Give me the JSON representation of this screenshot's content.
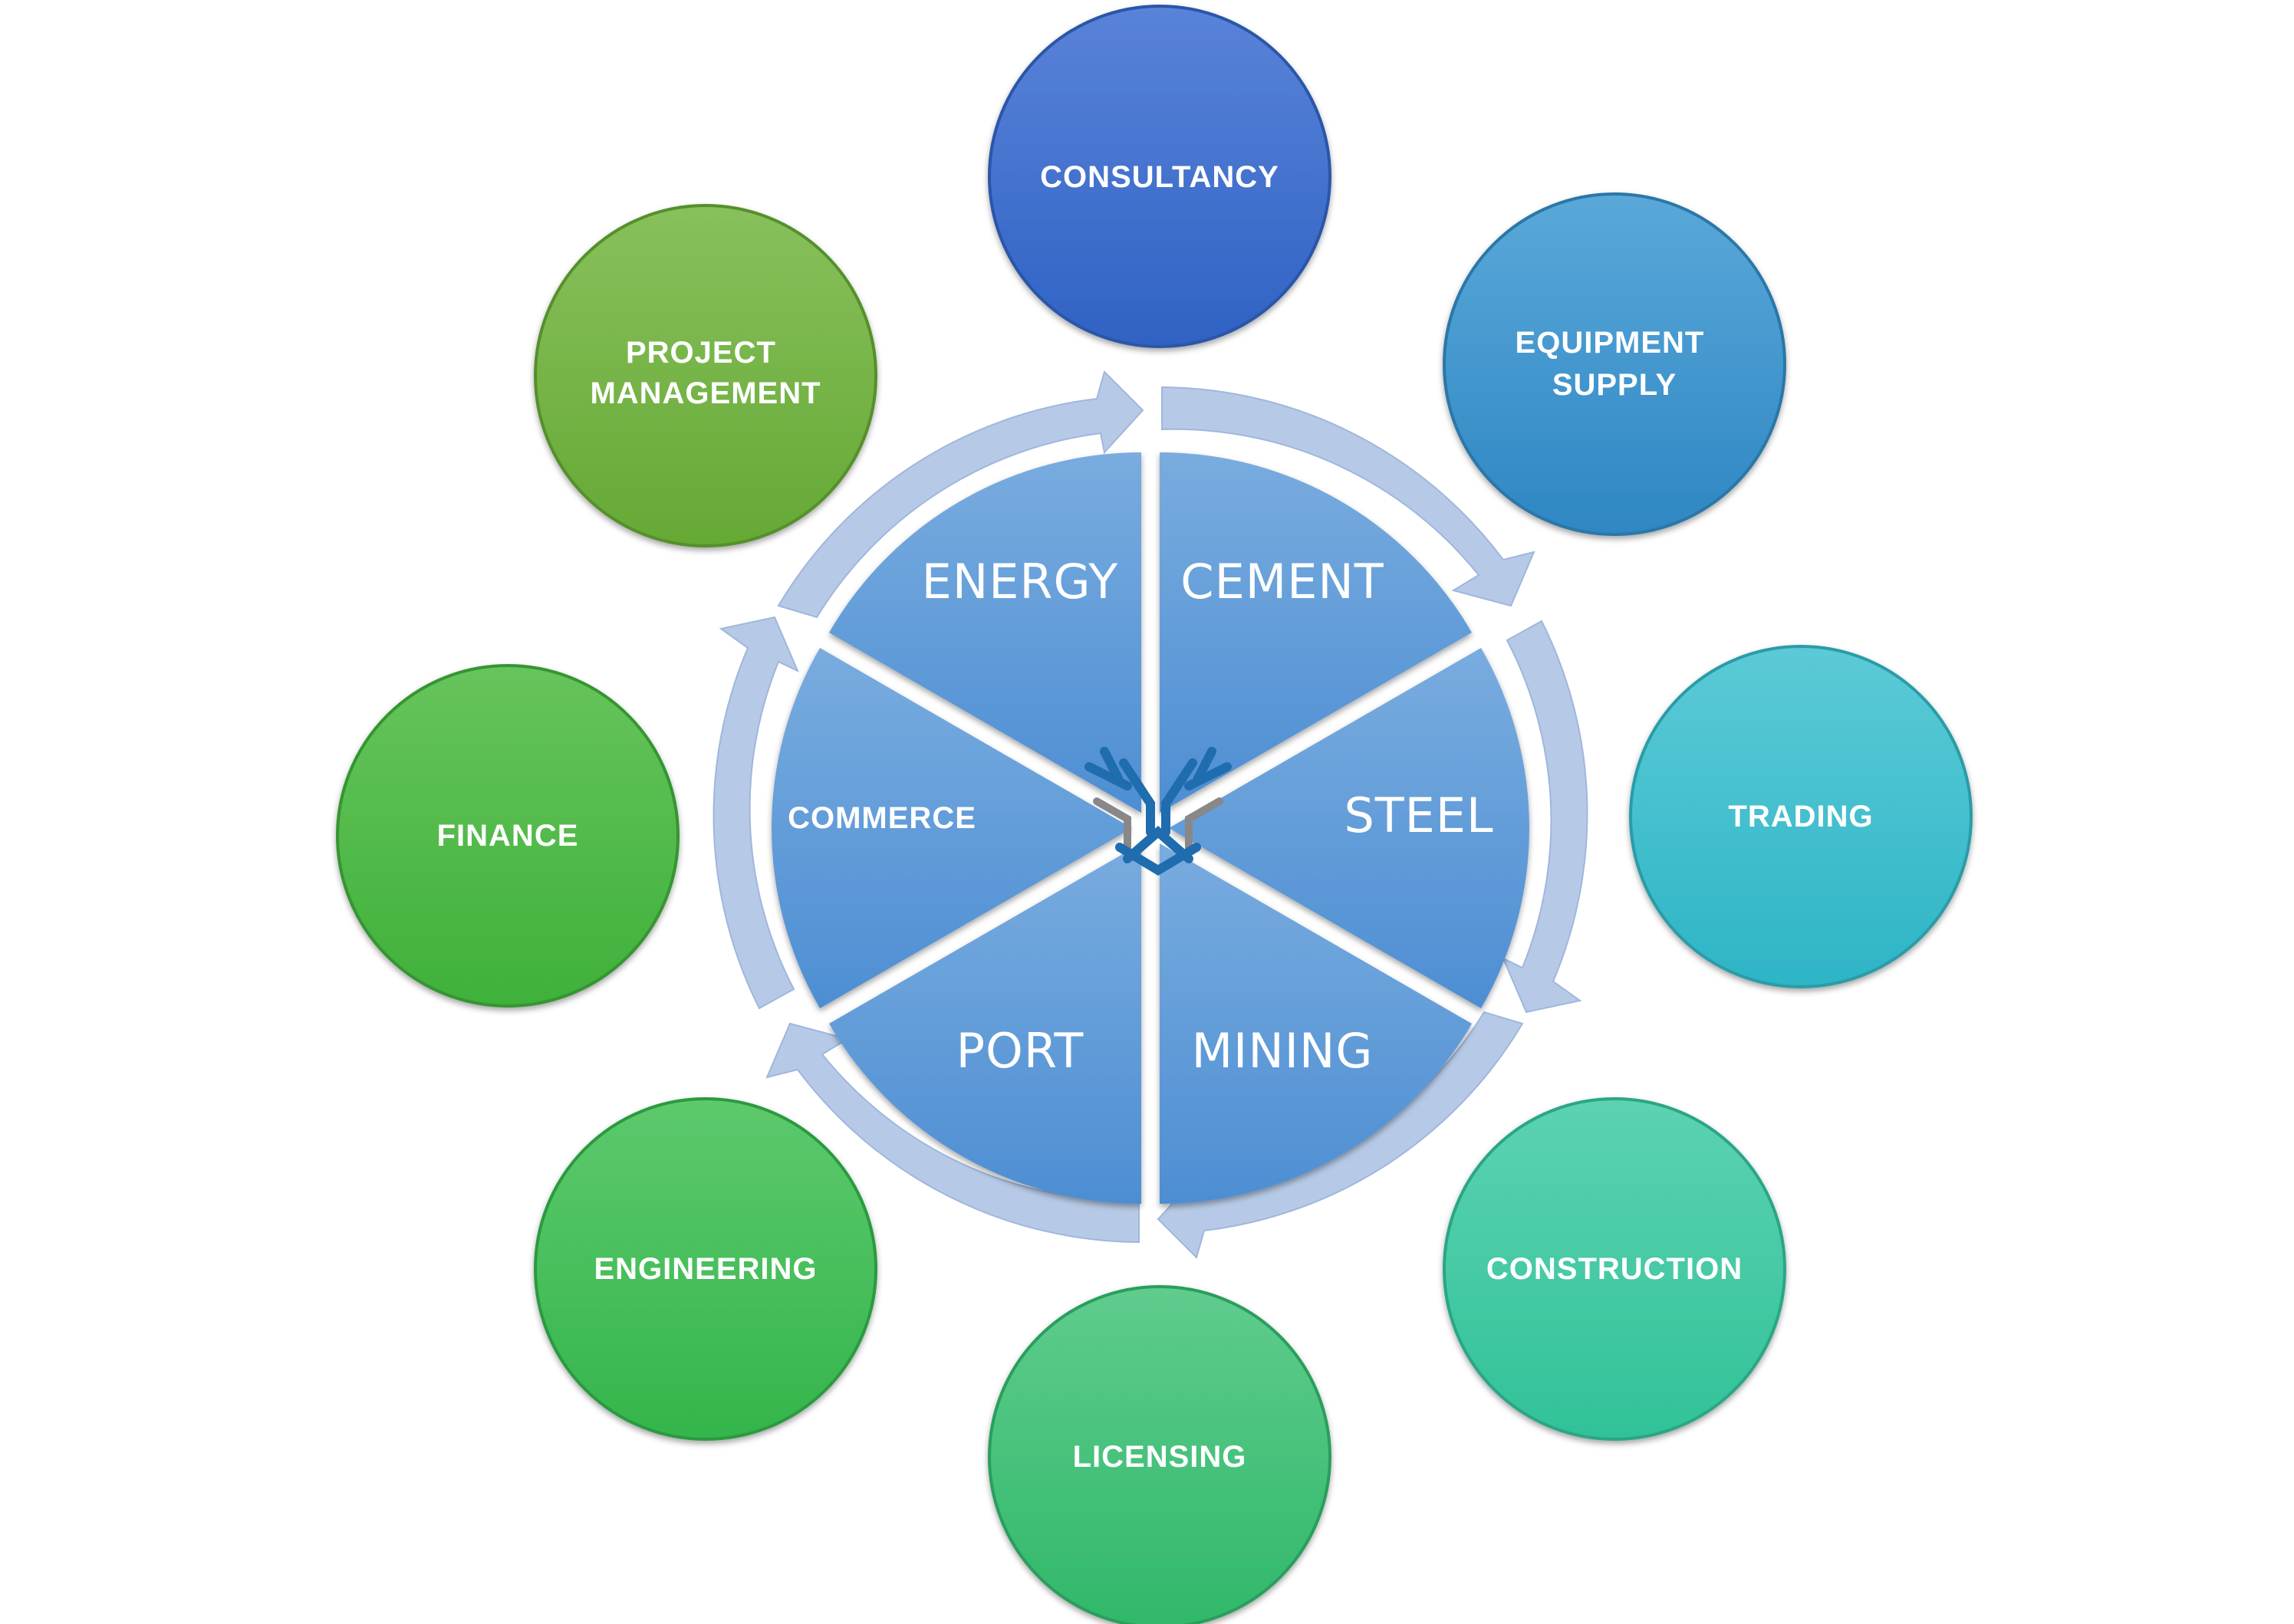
{
  "diagram": {
    "center_icon": "interlocking-y-logo-icon",
    "sectors": [
      {
        "label": "ENERGY"
      },
      {
        "label": "CEMENT"
      },
      {
        "label": "STEEL"
      },
      {
        "label": "MINING"
      },
      {
        "label": "PORT"
      },
      {
        "label": "COMMERCE"
      }
    ],
    "services": [
      {
        "label": "CONSULTANCY"
      },
      {
        "label_lines": [
          "EQUIPMENT",
          "SUPPLY"
        ]
      },
      {
        "label": "TRADING"
      },
      {
        "label": "CONSTRUCTION"
      },
      {
        "label": "LICENSING"
      },
      {
        "label": "ENGINEERING"
      },
      {
        "label": "FINANCE"
      },
      {
        "label_lines": [
          "PROJECT",
          "MANAGEMENT"
        ]
      }
    ],
    "colors": {
      "sector_fill": "#5f9bdc",
      "ring_arrows": "#b4c9e6",
      "consultancy": "#3c6ecc",
      "equipment_supply": "#3b92cc",
      "trading": "#3bbbcb",
      "construction": "#3fc8a3",
      "licensing": "#40c078",
      "engineering": "#3fbe57",
      "finance": "#4cb944",
      "project_management": "#70b041"
    }
  }
}
